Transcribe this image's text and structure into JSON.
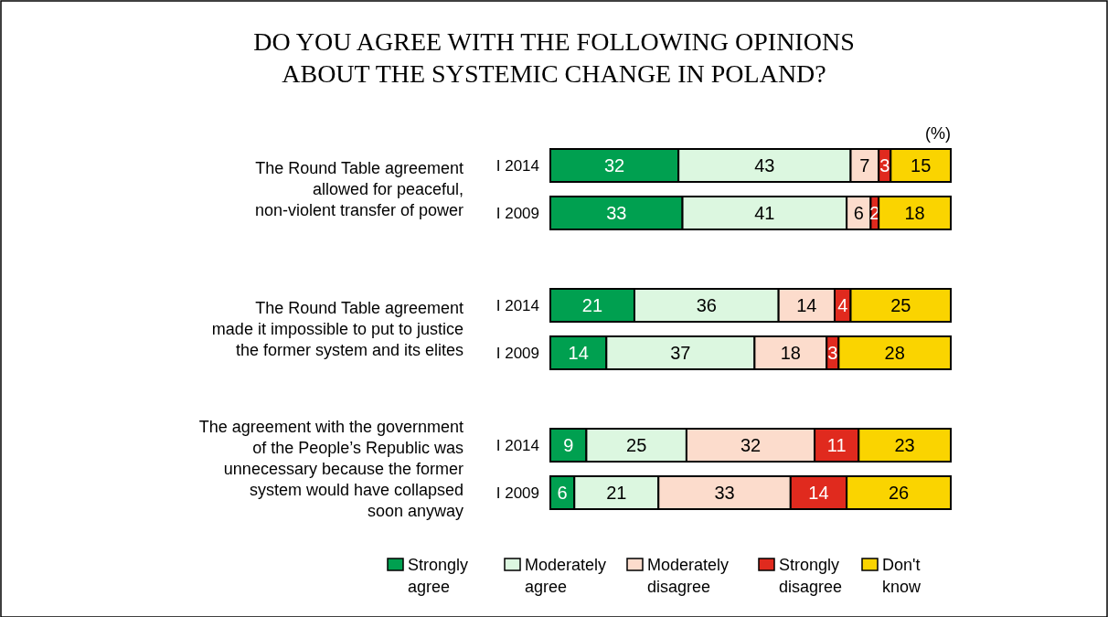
{
  "chart_data": {
    "type": "bar",
    "orientation": "horizontal",
    "stacked": true,
    "title": "DO YOU AGREE WITH THE FOLLOWING OPINIONS\nABOUT THE SYSTEMIC CHANGE IN POLAND?",
    "categories": [
      "I 2014",
      "I 2009",
      "I 2014",
      "I 2009",
      "I 2014",
      "I 2009"
    ],
    "series": [
      {
        "name": "Strongly agree",
        "color": "#00a050",
        "values": [
          32,
          33,
          21,
          14,
          9,
          6
        ]
      },
      {
        "name": "Moderately agree",
        "color": "#dcf7e0",
        "values": [
          43,
          41,
          36,
          37,
          25,
          21
        ]
      },
      {
        "name": "Moderately disagree",
        "color": "#fcdccc",
        "values": [
          7,
          6,
          14,
          18,
          32,
          33
        ]
      },
      {
        "name": "Strongly disagree",
        "color": "#e02a1e",
        "values": [
          3,
          2,
          4,
          3,
          11,
          14
        ]
      },
      {
        "name": "Don't know",
        "color": "#fad400",
        "values": [
          15,
          18,
          25,
          28,
          23,
          26
        ]
      }
    ],
    "xlim": [
      0,
      100
    ],
    "tick_labels": "y",
    "data_labels": true,
    "legend": "bottom",
    "annotations": [
      "(%)",
      "The Round Table agreement\nallowed for peaceful,\nnon-violent transfer of power",
      "The Round Table agreement\nmade it impossible to put to justice\nthe former system and its elites",
      "The agreement with the government\nof the People’s Republic was\nunnecessary because the former\nsystem would have collapsed\nsoon anyway"
    ]
  }
}
